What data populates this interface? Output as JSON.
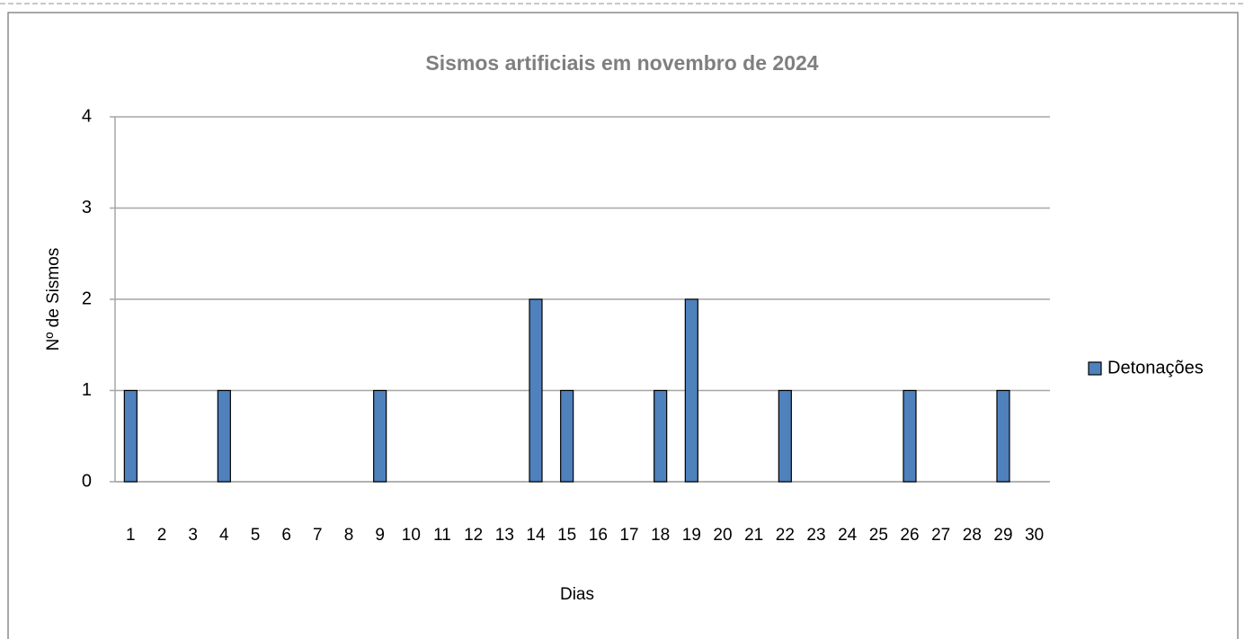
{
  "chart_data": {
    "type": "bar",
    "title": "Sismos artificiais em novembro de 2024",
    "x_label": "Dias",
    "y_label": "Nº de Sismos",
    "categories": [
      1,
      2,
      3,
      4,
      5,
      6,
      7,
      8,
      9,
      10,
      11,
      12,
      13,
      14,
      15,
      16,
      17,
      18,
      19,
      20,
      21,
      22,
      23,
      24,
      25,
      26,
      27,
      28,
      29,
      30
    ],
    "series": [
      {
        "name": "Detonações",
        "color": "#4f81bd",
        "values": [
          1,
          0,
          0,
          1,
          0,
          0,
          0,
          0,
          1,
          0,
          0,
          0,
          0,
          2,
          1,
          0,
          0,
          1,
          2,
          0,
          0,
          1,
          0,
          0,
          0,
          1,
          0,
          0,
          1,
          0
        ]
      }
    ],
    "ylim": [
      0,
      4
    ],
    "yticks": [
      0,
      1,
      2,
      3,
      4
    ],
    "grid": true,
    "legend": "right"
  }
}
